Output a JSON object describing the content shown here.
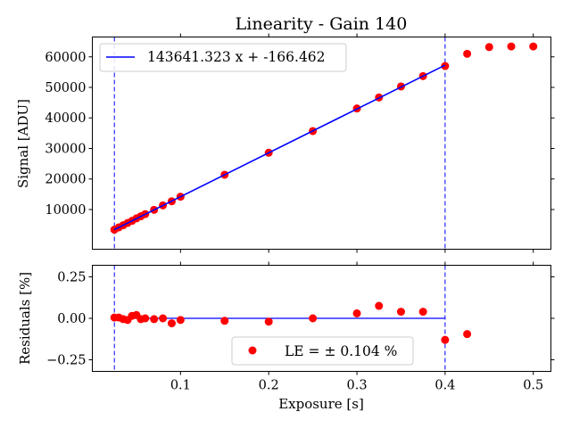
{
  "chart_data": [
    {
      "type": "scatter",
      "title": "Linearity - Gain 140",
      "xlabel": "",
      "ylabel": "Signal [ADU]",
      "xlim": [
        0.0,
        0.52
      ],
      "ylim": [
        -3000,
        66500
      ],
      "grid": false,
      "legend": {
        "placement": "top-left",
        "entries": [
          "143641.323 x + -166.462"
        ]
      },
      "y_ticks": [
        10000,
        20000,
        30000,
        40000,
        50000,
        60000
      ],
      "y_tick_labels": [
        "10000",
        "20000",
        "30000",
        "40000",
        "50000",
        "60000"
      ],
      "vlines": [
        0.025,
        0.4
      ],
      "fit_line": {
        "slope": 143641.323,
        "intercept": -166.462,
        "x_range": [
          0.025,
          0.4
        ],
        "label": "143641.323 x + -166.462",
        "color": "#0000ff"
      },
      "series": [
        {
          "color": "#ff0000",
          "x": [
            0.025,
            0.03,
            0.035,
            0.04,
            0.045,
            0.05,
            0.055,
            0.06,
            0.07,
            0.08,
            0.09,
            0.1,
            0.15,
            0.2,
            0.25,
            0.3,
            0.325,
            0.35,
            0.375,
            0.4,
            0.425,
            0.45,
            0.475,
            0.5
          ],
          "y": [
            3400,
            4150,
            4850,
            5600,
            6300,
            7100,
            7800,
            8500,
            9900,
            11350,
            12700,
            14200,
            21400,
            28600,
            35700,
            43100,
            46700,
            50300,
            53700,
            57000,
            61000,
            63200,
            63400,
            63400
          ]
        }
      ]
    },
    {
      "type": "scatter",
      "title": "",
      "xlabel": "Exposure [s]",
      "ylabel": "Residuals [%]",
      "xlim": [
        0.0,
        0.52
      ],
      "ylim": [
        -0.32,
        0.32
      ],
      "grid": false,
      "legend": {
        "placement": "lower-center",
        "entries": [
          "LE = ± 0.104 %"
        ]
      },
      "x_ticks": [
        0.1,
        0.2,
        0.3,
        0.4,
        0.5
      ],
      "x_tick_labels": [
        "0.1",
        "0.2",
        "0.3",
        "0.4",
        "0.5"
      ],
      "y_ticks": [
        -0.25,
        0.0,
        0.25
      ],
      "y_tick_labels": [
        "−0.25",
        "0.00",
        "0.25"
      ],
      "vlines": [
        0.025,
        0.4
      ],
      "zero_line": {
        "y": 0.0,
        "x_range": [
          0.025,
          0.4
        ],
        "color": "#0000ff"
      },
      "series": [
        {
          "name": "LE = ± 0.104 %",
          "color": "#ff0000",
          "x": [
            0.025,
            0.03,
            0.035,
            0.04,
            0.045,
            0.05,
            0.055,
            0.06,
            0.07,
            0.08,
            0.09,
            0.1,
            0.15,
            0.2,
            0.25,
            0.3,
            0.325,
            0.35,
            0.375,
            0.4,
            0.425
          ],
          "y": [
            0.005,
            0.005,
            -0.005,
            -0.01,
            0.015,
            0.02,
            -0.005,
            0.0,
            -0.005,
            0.0,
            -0.03,
            -0.01,
            -0.015,
            -0.02,
            0.0,
            0.03,
            0.075,
            0.04,
            0.04,
            -0.13,
            -0.095
          ]
        }
      ]
    }
  ]
}
